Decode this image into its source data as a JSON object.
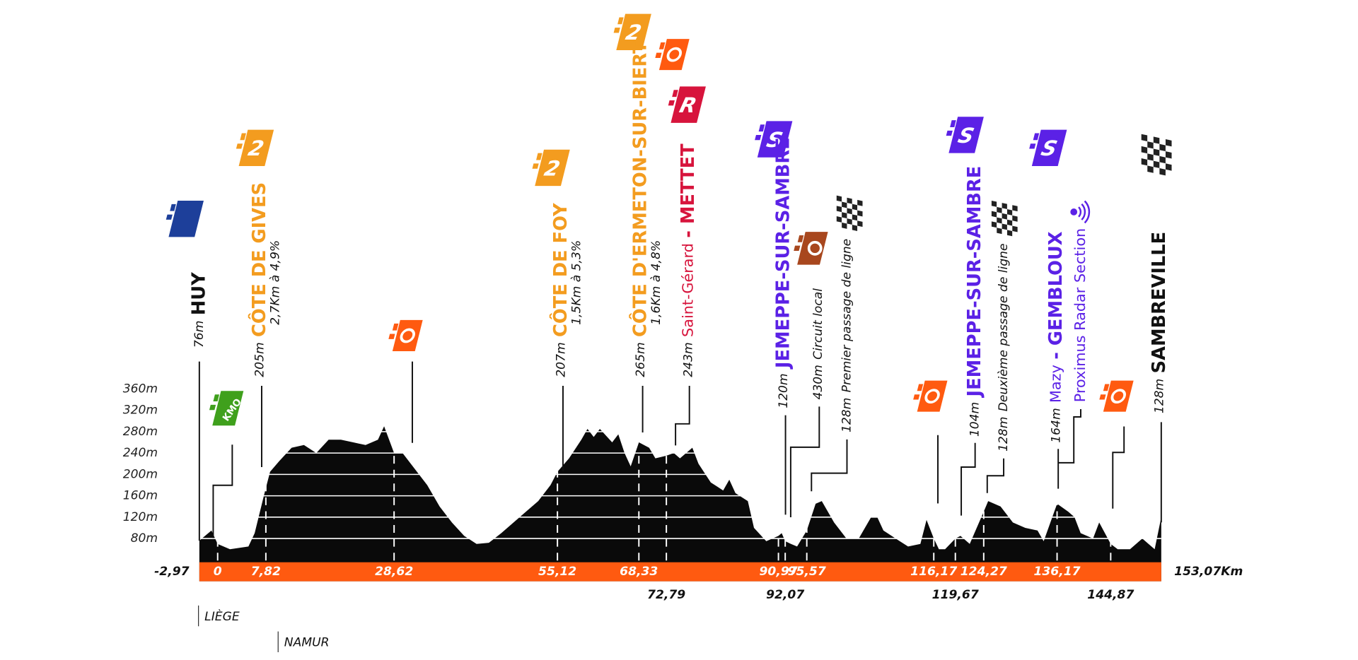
{
  "chart_data": {
    "type": "area",
    "color": "#0a0a0a",
    "band_color": "#ff5a10",
    "grid": true,
    "grid_color": "#ffffff",
    "xlim": [
      -2.97,
      153.07
    ],
    "ylim": [
      0,
      360
    ],
    "yticks": [
      {
        "value": 80,
        "label": "80m"
      },
      {
        "value": 120,
        "label": "120m"
      },
      {
        "value": 160,
        "label": "160m"
      },
      {
        "value": 200,
        "label": "200m"
      },
      {
        "value": 240,
        "label": "240m"
      },
      {
        "value": 280,
        "label": "280m"
      },
      {
        "value": 320,
        "label": "320m"
      },
      {
        "value": 360,
        "label": "360m"
      }
    ],
    "xticks": [
      {
        "value": -2.97,
        "label": "-2,97"
      },
      0,
      {
        "value": 7.82,
        "label": "7,82"
      },
      {
        "value": 28.62,
        "label": "28,62"
      },
      {
        "value": 55.12,
        "label": "55,12"
      },
      {
        "value": 68.33,
        "label": "68,33"
      },
      {
        "value": 72.79,
        "label": "72,79"
      },
      {
        "value": 90.97,
        "label": "90,97"
      },
      {
        "value": 92.07,
        "label": "92,07"
      },
      {
        "value": 95.57,
        "label": "95,57"
      },
      {
        "value": 116.17,
        "label": "116,17"
      },
      {
        "value": 119.67,
        "label": "119,67"
      },
      {
        "value": 124.27,
        "label": "124,27"
      },
      {
        "value": 136.17,
        "label": "136,17"
      },
      {
        "value": 144.87,
        "label": "144,87"
      },
      {
        "value": 153.07,
        "label": "153,07Km"
      }
    ],
    "x": [
      -2.97,
      -1,
      0,
      2,
      5,
      6,
      7.5,
      8.5,
      10,
      12,
      14,
      16,
      18,
      20,
      22,
      24,
      26,
      27,
      28.62,
      30,
      32,
      34,
      36,
      38,
      40,
      42,
      44,
      46,
      48,
      50,
      52,
      54,
      55.12,
      57,
      59,
      60,
      61,
      62,
      64,
      65,
      66,
      67,
      68.33,
      70,
      71,
      72.79,
      74,
      75,
      77,
      78,
      80,
      82,
      83,
      84,
      86,
      87,
      89,
      90.97,
      91.5,
      92.07,
      93,
      94,
      95.57,
      97,
      98,
      100,
      102,
      104,
      106,
      107,
      108,
      110,
      112,
      114,
      115,
      116.17,
      117,
      118,
      119.67,
      120.5,
      122,
      124.27,
      125,
      127,
      129,
      131,
      133,
      134,
      136.17,
      138,
      139,
      140,
      142,
      143,
      144.87,
      146,
      148,
      150,
      151,
      152,
      153.07
    ],
    "values": [
      76,
      95,
      70,
      60,
      65,
      90,
      160,
      205,
      225,
      250,
      255,
      240,
      265,
      265,
      260,
      255,
      265,
      290,
      240,
      240,
      210,
      180,
      140,
      110,
      85,
      70,
      72,
      90,
      110,
      130,
      150,
      180,
      205,
      230,
      265,
      285,
      270,
      285,
      260,
      275,
      240,
      215,
      260,
      250,
      230,
      235,
      240,
      230,
      250,
      220,
      185,
      170,
      190,
      165,
      150,
      100,
      75,
      85,
      90,
      75,
      70,
      65,
      95,
      145,
      150,
      110,
      80,
      80,
      120,
      120,
      95,
      80,
      65,
      70,
      115,
      80,
      60,
      60,
      80,
      85,
      70,
      130,
      150,
      140,
      110,
      100,
      95,
      75,
      145,
      130,
      120,
      90,
      80,
      110,
      70,
      60,
      60,
      80,
      70,
      60,
      120
    ],
    "kmo_badge": "KMO",
    "annotations": [
      {
        "elevation": "76m",
        "name": "HUY",
        "color": "#111111"
      },
      {
        "elevation": "205m",
        "name": "CÔTE DE GIVES",
        "detail": "2,7Km à 4,9%",
        "color": "#f39c1f",
        "badge": "2"
      },
      {
        "elevation": "207m",
        "name": "CÔTE DE FOY",
        "detail": "1,5Km à 5,3%",
        "color": "#f39c1f",
        "badge": "2"
      },
      {
        "elevation": "265m",
        "name": "CÔTE D'ERMETON-SUR-BIERT",
        "detail": "1,6Km à 4,8%",
        "color": "#f39c1f",
        "badge": "2"
      },
      {
        "elevation": "243m",
        "place": "Saint-Gérard",
        "name": "- METTET",
        "color": "#d7143c",
        "badge": "R"
      },
      {
        "elevation": "120m",
        "name": "JEMEPPE-SUR-SAMBRE",
        "color": "#5b21e6",
        "badge": "S"
      },
      {
        "elevation": "430m",
        "name": "Circuit local",
        "color": "#111111"
      },
      {
        "elevation": "128m",
        "name": "Premier passage de ligne",
        "color": "#111111"
      },
      {
        "elevation": "104m",
        "name": "JEMEPPE-SUR-SAMBRE",
        "color": "#5b21e6",
        "badge": "S"
      },
      {
        "elevation": "128m",
        "name": "Deuxième passage de ligne",
        "color": "#111111"
      },
      {
        "elevation": "164m",
        "place": "Mazy",
        "name": "- GEMBLOUX",
        "color": "#5b21e6",
        "badge": "S"
      },
      {
        "name": "Proximus Radar Section",
        "color": "#5b21e6"
      },
      {
        "elevation": "128m",
        "name": "SAMBREVILLE",
        "color": "#111111"
      }
    ],
    "provinces": [
      "LIÈGE",
      "NAMUR"
    ]
  }
}
